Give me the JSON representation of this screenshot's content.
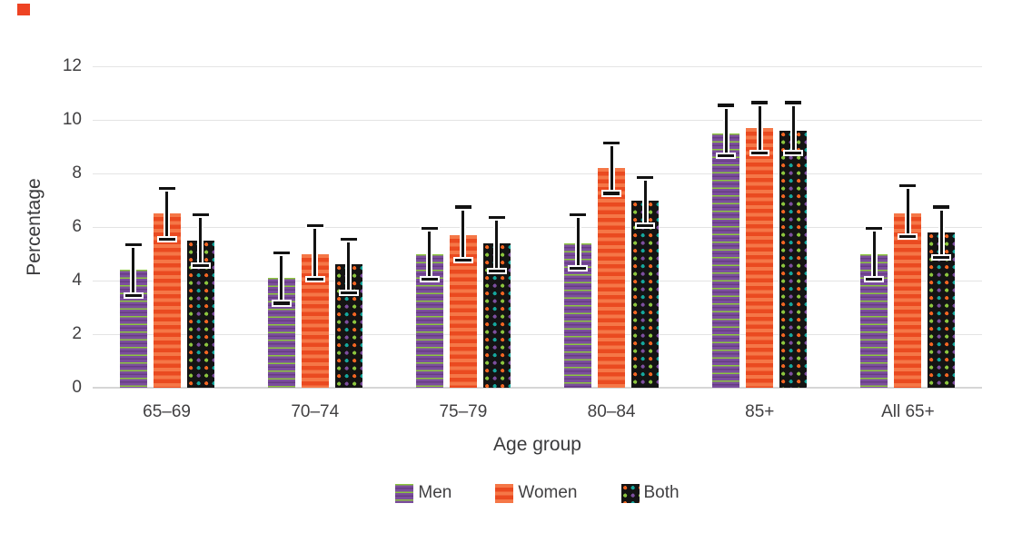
{
  "decorations": {
    "corner_square_color": "#ee4323"
  },
  "chart_data": {
    "type": "bar",
    "title": "",
    "xlabel": "Age group",
    "ylabel": "Percentage",
    "ylim": [
      0,
      12
    ],
    "yticks": [
      0,
      2,
      4,
      6,
      8,
      10,
      12
    ],
    "grid": true,
    "error_bars": true,
    "legend_position": "bottom",
    "categories": [
      "65–69",
      "70–74",
      "75–79",
      "80–84",
      "85+",
      "All 65+"
    ],
    "series": [
      {
        "name": "Men",
        "pattern": "purple-lime-stripes",
        "colors": {
          "base": "#7c4e9e",
          "band": "#663d82",
          "stripe": "#8cc63e"
        },
        "values": [
          4.4,
          4.1,
          5.0,
          5.4,
          9.5,
          5.0
        ],
        "error_low": [
          3.4,
          3.1,
          4.0,
          4.4,
          8.6,
          4.0
        ],
        "error_high": [
          5.4,
          5.1,
          6.0,
          6.5,
          10.6,
          6.0
        ]
      },
      {
        "name": "Women",
        "pattern": "orange-stripes",
        "colors": {
          "light": "#f57747",
          "dark": "#ea4a20"
        },
        "values": [
          6.5,
          5.0,
          5.7,
          8.2,
          9.7,
          6.5
        ],
        "error_low": [
          5.5,
          4.0,
          4.7,
          7.2,
          8.7,
          5.6
        ],
        "error_high": [
          7.5,
          6.1,
          6.8,
          9.2,
          10.7,
          7.6
        ]
      },
      {
        "name": "Both",
        "pattern": "black-multicolour-dots",
        "colors": {
          "background": "#141414",
          "dots": [
            "#f26522",
            "#15a79d",
            "#8cc63e",
            "#7c4e9e"
          ]
        },
        "values": [
          5.5,
          4.6,
          5.4,
          7.0,
          9.6,
          5.8
        ],
        "error_low": [
          4.5,
          3.5,
          4.3,
          6.0,
          8.7,
          4.8
        ],
        "error_high": [
          6.5,
          5.6,
          6.4,
          7.9,
          10.7,
          6.8
        ]
      }
    ],
    "axis_colors": {
      "gridline": "#e4e4e4",
      "baseline": "#d6d6d6",
      "text": "#414042"
    }
  }
}
